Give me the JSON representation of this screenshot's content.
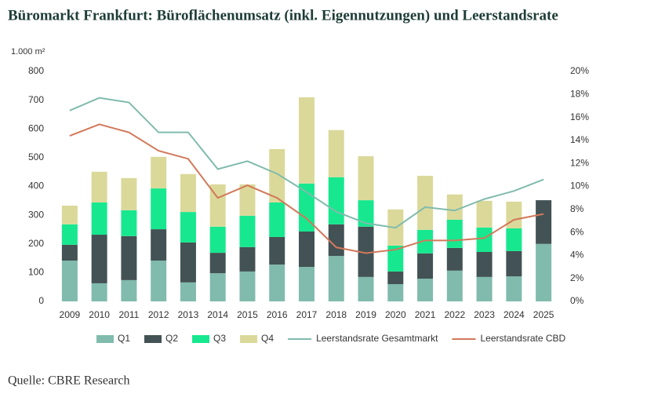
{
  "chart_data": {
    "type": "bar",
    "stacked": true,
    "title": "Büromarkt Frankfurt: Büroflächenumsatz (inkl. Eigennutzungen) und Leerstandsrate",
    "y_label": "1.000 m²",
    "source": "Quelle: CBRE Research",
    "categories": [
      "2009",
      "2010",
      "2011",
      "2012",
      "2013",
      "2014",
      "2015",
      "2016",
      "2017",
      "2018",
      "2019",
      "2020",
      "2021",
      "2022",
      "2023",
      "2024",
      "2025"
    ],
    "series": [
      {
        "name": "Q1",
        "type": "bar",
        "color": "#80bbad",
        "values": [
          142,
          63,
          74,
          142,
          66,
          98,
          104,
          128,
          120,
          158,
          85,
          60,
          79,
          107,
          85,
          87,
          200
        ]
      },
      {
        "name": "Q2",
        "type": "bar",
        "color": "#435254",
        "values": [
          55,
          169,
          153,
          109,
          139,
          71,
          85,
          96,
          123,
          110,
          175,
          44,
          88,
          79,
          87,
          88,
          152
        ]
      },
      {
        "name": "Q3",
        "type": "bar",
        "color": "#17e88f",
        "values": [
          71,
          112,
          90,
          142,
          106,
          91,
          109,
          120,
          167,
          164,
          92,
          90,
          82,
          98,
          85,
          79,
          null
        ]
      },
      {
        "name": "Q4",
        "type": "bar",
        "color": "#dbd99a",
        "values": [
          65,
          107,
          112,
          110,
          132,
          147,
          109,
          186,
          300,
          164,
          153,
          126,
          188,
          88,
          93,
          93,
          null
        ]
      },
      {
        "name": "Leerstandsrate Gesamtmarkt",
        "type": "line",
        "axis": "y2",
        "color": "#80bbad",
        "values": [
          16.6,
          17.7,
          17.3,
          14.7,
          14.7,
          11.5,
          12.2,
          11.1,
          9.5,
          7.8,
          6.8,
          6.4,
          8.2,
          7.9,
          8.9,
          9.6,
          10.6
        ]
      },
      {
        "name": "Leerstandsrate CBD",
        "type": "line",
        "axis": "y2",
        "color": "#d2785a",
        "values": [
          14.4,
          15.4,
          14.7,
          13.1,
          12.4,
          9.0,
          10.1,
          9.0,
          7.2,
          4.7,
          4.2,
          4.5,
          5.3,
          5.3,
          5.5,
          7.1,
          7.6
        ]
      }
    ],
    "ylim": [
      0,
      800
    ],
    "yticks": [
      0,
      100,
      200,
      300,
      400,
      500,
      600,
      700,
      800
    ],
    "y2lim": [
      0,
      20
    ],
    "y2ticks": [
      {
        "value": 0,
        "label": "0%"
      },
      {
        "value": 2,
        "label": "2%"
      },
      {
        "value": 4,
        "label": "4%"
      },
      {
        "value": 6,
        "label": "6%"
      },
      {
        "value": 8,
        "label": "8%"
      },
      {
        "value": 10,
        "label": "10%"
      },
      {
        "value": 12,
        "label": "12%"
      },
      {
        "value": 14,
        "label": "14%"
      },
      {
        "value": 16,
        "label": "16%"
      },
      {
        "value": 18,
        "label": "18%"
      },
      {
        "value": 20,
        "label": "20%"
      }
    ],
    "grid": false,
    "legend": "bottom"
  }
}
